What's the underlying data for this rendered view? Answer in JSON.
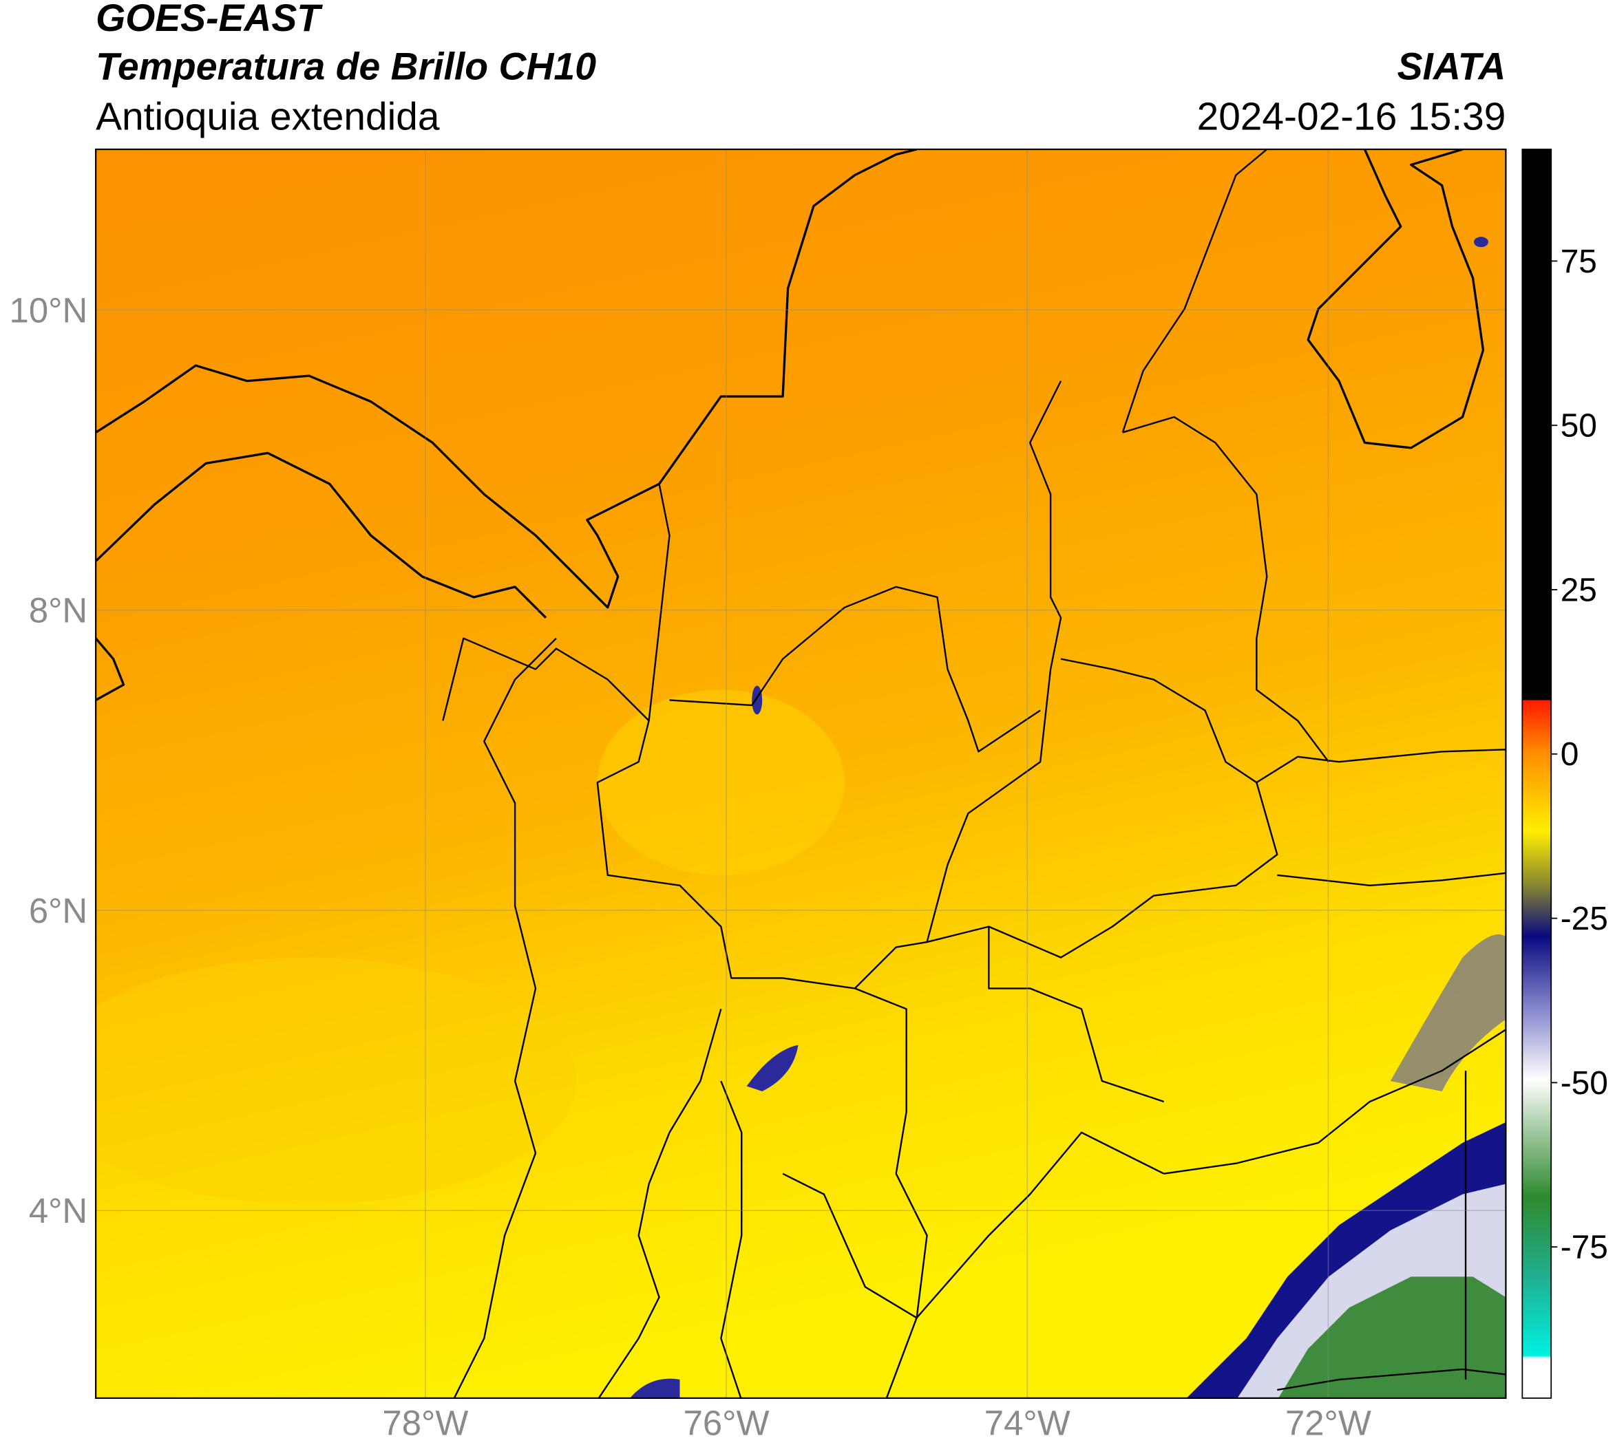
{
  "header": {
    "satellite": "GOES-EAST",
    "product": "Temperatura de Brillo CH10",
    "region": "Antioquia extendida",
    "source": "SIATA",
    "datetime": "2024-02-16 15:39"
  },
  "map": {
    "xlim": [
      -80.19,
      -70.82
    ],
    "ylim": [
      2.75,
      11.07
    ],
    "xticks": [
      {
        "value": -78,
        "label": "78°W"
      },
      {
        "value": -76,
        "label": "76°W"
      },
      {
        "value": -74,
        "label": "74°W"
      },
      {
        "value": -72,
        "label": "72°W"
      }
    ],
    "yticks": [
      {
        "value": 4,
        "label": "4°N"
      },
      {
        "value": 6,
        "label": "6°N"
      },
      {
        "value": 8,
        "label": "8°N"
      },
      {
        "value": 10,
        "label": "10°N"
      }
    ],
    "grid": true
  },
  "colorbar": {
    "lim": [
      -98,
      92
    ],
    "ticks": [
      -75,
      -50,
      -25,
      0,
      25,
      50,
      75
    ]
  }
}
